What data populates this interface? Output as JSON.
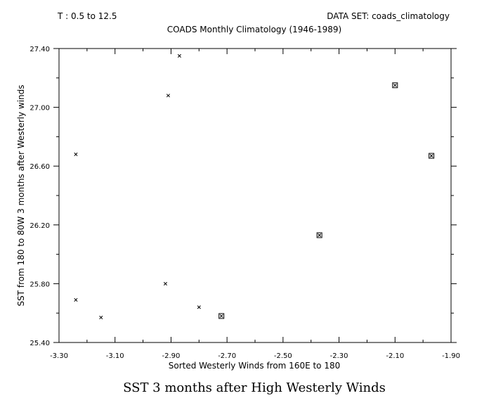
{
  "header": {
    "time_range": "T : 0.5 to 12.5",
    "dataset": "DATA SET: coads_climatology",
    "subtitle": "COADS Monthly Climatology (1946-1989)"
  },
  "caption": "SST 3 months after High Westerly Winds",
  "chart_data": {
    "type": "scatter",
    "xlabel": "Sorted Westerly Winds from 160E to 180",
    "ylabel": "SST from 180 to 80W 3 months after Westerly winds",
    "xlim": [
      -3.3,
      -1.9
    ],
    "ylim": [
      25.4,
      27.4
    ],
    "x_ticks": [
      -3.3,
      -3.1,
      -2.9,
      -2.7,
      -2.5,
      -2.3,
      -2.1,
      -1.9
    ],
    "x_tick_labels": [
      "-3.30",
      "-3.10",
      "-2.90",
      "-2.70",
      "-2.50",
      "-2.30",
      "-2.10",
      "-1.90"
    ],
    "y_ticks": [
      25.4,
      25.8,
      26.2,
      26.6,
      27.0,
      27.4
    ],
    "y_tick_labels": [
      "25.40",
      "25.80",
      "26.20",
      "26.60",
      "27.00",
      "27.40"
    ],
    "series": [
      {
        "marker": "x",
        "points": [
          {
            "x": -3.24,
            "y": 26.68
          },
          {
            "x": -3.24,
            "y": 25.69
          },
          {
            "x": -3.15,
            "y": 25.57
          },
          {
            "x": -2.91,
            "y": 27.08
          },
          {
            "x": -2.92,
            "y": 25.8
          },
          {
            "x": -2.87,
            "y": 27.35
          },
          {
            "x": -2.8,
            "y": 25.64
          }
        ]
      },
      {
        "marker": "boxed-x",
        "points": [
          {
            "x": -2.72,
            "y": 25.58
          },
          {
            "x": -2.37,
            "y": 26.13
          },
          {
            "x": -2.1,
            "y": 27.15
          },
          {
            "x": -1.97,
            "y": 26.67
          }
        ]
      }
    ],
    "grid": false,
    "legend": "none"
  }
}
